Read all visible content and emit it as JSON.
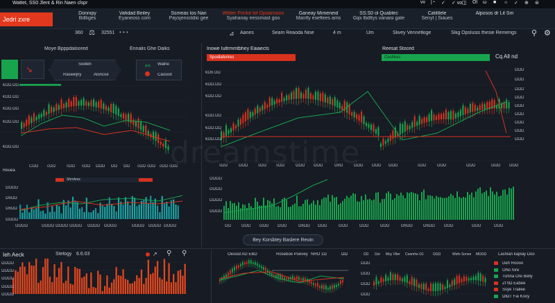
{
  "menubar": {
    "title": "Wattet,  SS0 Jlent & Rin Naen clspr",
    "right_items": [
      "vv",
      "|◔",
      "✓",
      "✓ vo",
      "◫",
      "Ol",
      "ω",
      "■",
      "☼",
      "✓",
      "⊕",
      "⊜"
    ]
  },
  "header": {
    "brand": "Jedri zxre",
    "cells": [
      {
        "l1": "Donnipy",
        "l2": "Bdlliges"
      },
      {
        "l1": "Vafidad Beiley",
        "l2": "Eyaneoss com"
      },
      {
        "l1": "Ssmeas tos Nan",
        "l2": "Paysjensstdio gee"
      },
      {
        "l1": "Wlitter Ponke lof Opoarssion",
        "l2": "Syahanay eessmast goo"
      },
      {
        "l1": "Ganeay Mimeneid",
        "l2": "Mantfy eseftees ams"
      },
      {
        "l1": "SS:S0 ol Quabtec",
        "l2": "Gipi Ibdttys vanaisi gate"
      },
      {
        "l1": "Catiltlele",
        "l2": "Senyt  |  Siaues"
      },
      {
        "l1": "Alposos dr  Lit Sm",
        "l2": ""
      }
    ]
  },
  "toolbar": {
    "left_value_a": "360",
    "left_value_b": "32551",
    "items": [
      "Aanes",
      "Seam Reaoda Nise",
      "4 m",
      "Um",
      "Slivey Vennetkige",
      "Sliig Opslusis thesie Remerigs"
    ]
  },
  "left_panel": {
    "title": "Moye Bpppdaloored",
    "side_title": "Ennalis Ghe Dalks",
    "card1": {
      "title": "Sodleh",
      "sub": "Raseeljny",
      "sub2": "Aloncoe"
    },
    "card2": {
      "title": "Walne",
      "sub": "Caosod"
    },
    "y_ticks": [
      "€ΩΩ.ΩΩ",
      "€ΩΩ.ΩΩ",
      "€ΩΩ.ΩΩ",
      "€ΩΩ.ΩΩ",
      "€ΩΩ.ΩΩ"
    ],
    "x_ticks": [
      "CΩΩ",
      "cΩΩ",
      "cΩΩ",
      "cΩΩ",
      "ΩΩΩ",
      "ΩΩ",
      "ΩΩ",
      "cΩΩ",
      "cΩΩ",
      "cΩΩ",
      "cΩΩ"
    ],
    "footer": "Reuea",
    "vol_badge": "Shrofess",
    "vol_y": [
      "ΩΩΩΩ",
      "Ω6ΩΩ",
      "Ω6ΩΩ",
      "ΩΩΩΩ"
    ],
    "vol_x": [
      "ΩΩΩΩ",
      "ΩΩΩΩ",
      "ΩΩΩΩ",
      "ΩΩΩΩ",
      "ΩΩΩΩ",
      "ΩΩΩΩ",
      "ΩΩΩΩ",
      "ΩΩΩΩ",
      "ΩΩΩΩ"
    ]
  },
  "main_panel": {
    "title": "Inowe Iultrmmtbhey Eaiaects",
    "badge": "Spodlaferires",
    "y_ticks": [
      "€Ω6.ΩΩ",
      "€ΩΩ.ΩΩ",
      "€ΩΩ.ΩΩ",
      "€ΩΩ.ΩΩ",
      "€ΩΩ.ΩΩ",
      "€ΩΩ.ΩΩ"
    ],
    "x_ticks": [
      "sΩΩ",
      "ΩΩΩ",
      "sΩΩ",
      "sΩΩ",
      "ΩΩΩ",
      "ΩΩΩ",
      "Ω6Ω",
      "ΩΩΩ",
      "ΩΩΩ",
      "ΩΩΩ",
      "cΩΩ",
      "ΩΩΩ",
      "ΩΩΩ",
      "ΩΩΩ",
      "ΩΩΩ"
    ],
    "vol_y": [
      "ΩΩΩΩ",
      "ΩΩΩΩ",
      "ΩΩΩΩ",
      "ΩΩΩΩ"
    ],
    "vol_x": [
      "ΩΩ",
      "ΩΩΩ",
      "ΩΩΩ",
      "ΩΩΩ",
      "Ω6ΩΩ",
      "ΩΩΩ",
      "ΩΩΩ",
      "ΩΩΩ",
      "ΩΩΩ",
      "Ω6ΩΩ",
      "Ω6ΩΩ",
      "ΩΩΩ",
      "ΩΩΩ",
      "ΩΩΩ"
    ],
    "button": "Bey Korsbtey Baslere Reoin"
  },
  "right_panel": {
    "title": "Reesat Stoced",
    "badge": "Ceshkes",
    "side_label": "Cq  All nd",
    "y_ticks": [
      "ΩΩΩ",
      "ΩΩΩ",
      "ΩΩΩ",
      "ΩΩΩ",
      "ΩΩΩ",
      "ΩΩΩ",
      "ΩΩΩ",
      "ΩΩΩ",
      "ΩΩΩ"
    ]
  },
  "bottom_left": {
    "title": "Ieh  Aeck",
    "sub": "Stelogy",
    "value": "6.6.03",
    "y_ticks": [
      "ΩΩΩΩ",
      "ΩΩΩΩ",
      "ΩΩΩΩ",
      "ΩΩΩΩ",
      "ΩΩΩΩ"
    ]
  },
  "bottom_mid": {
    "title": "Oesoid AD EBD",
    "col2": "Roseboe Poevey",
    "col3": "NRO 1Ω",
    "col4": "ΩΩ"
  },
  "bottom_right": {
    "header": [
      "ΩΩ",
      "Ωoi",
      "Msy Vlter",
      "Ceamhe Ω1",
      "ΩΩΩ",
      "Wefo Sonee",
      "MΩΩΩ"
    ],
    "y_ticks": [
      "ΩΩΩ",
      "ΩΩΩ",
      "ΩΩΩ",
      "ΩΩΩ"
    ],
    "legend_title": "Lashlan kaplay Doo",
    "legend": [
      {
        "label": "Deh Roooo",
        "color": "#d8321e"
      },
      {
        "label": "Ohic fore",
        "color": "#18a44d"
      },
      {
        "label": "Tsrlina Ore Belly",
        "color": "#18a44d"
      },
      {
        "label": "Zf fiΩ Eabee",
        "color": "#d8321e"
      },
      {
        "label": "Ssye Trailee",
        "color": "#d8321e"
      },
      {
        "label": "ΩlΩT Fai Kooy",
        "color": "#18a44d"
      }
    ]
  },
  "watermark": "dreamstime",
  "colors": {
    "up": "#18a44d",
    "down": "#d8321e",
    "accent": "#e2381d",
    "teal": "#1ea6a0"
  }
}
